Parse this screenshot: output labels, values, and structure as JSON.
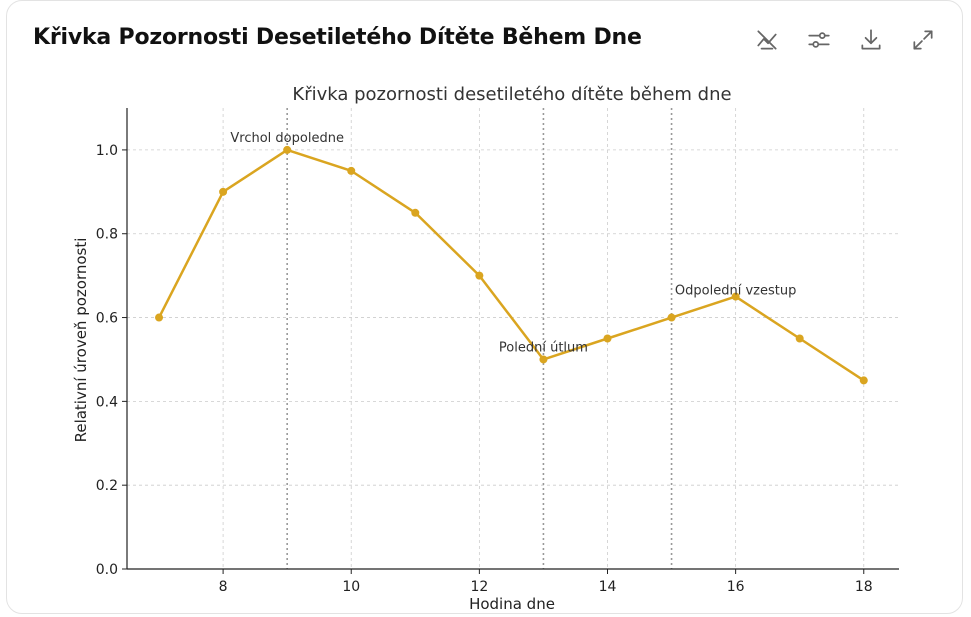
{
  "header": {
    "title": "Křivka Pozornosti Desetiletého Dítěte Během Dne",
    "tools": [
      {
        "name": "hide-icon",
        "label": "Hide"
      },
      {
        "name": "settings-sliders-icon",
        "label": "Settings"
      },
      {
        "name": "download-icon",
        "label": "Download"
      },
      {
        "name": "expand-icon",
        "label": "Expand"
      }
    ]
  },
  "chart_data": {
    "type": "line",
    "title": "Křivka pozornosti desetiletého dítěte během dne",
    "xlabel": "Hodina dne",
    "ylabel": "Relativní úroveň pozornosti",
    "xlim": [
      6.5,
      18.55
    ],
    "ylim": [
      0,
      1.1
    ],
    "xticks": [
      8,
      10,
      12,
      14,
      16,
      18
    ],
    "yticks": [
      0.0,
      0.2,
      0.4,
      0.6,
      0.8,
      1.0
    ],
    "grid": true,
    "color": "#DAA520",
    "x": [
      7,
      8,
      9,
      10,
      11,
      12,
      13,
      14,
      15,
      16,
      17,
      18
    ],
    "y": [
      0.6,
      0.9,
      1.0,
      0.95,
      0.85,
      0.7,
      0.5,
      0.55,
      0.6,
      0.65,
      0.55,
      0.45
    ],
    "vlines": [
      9,
      13,
      15
    ],
    "annotations": [
      {
        "text": "Vrchol dopoledne",
        "x": 9,
        "y": 1.0
      },
      {
        "text": "Polední útlum",
        "x": 13,
        "y": 0.5
      },
      {
        "text": "Odpolední vzestup",
        "x": 16,
        "y": 0.65
      }
    ]
  }
}
